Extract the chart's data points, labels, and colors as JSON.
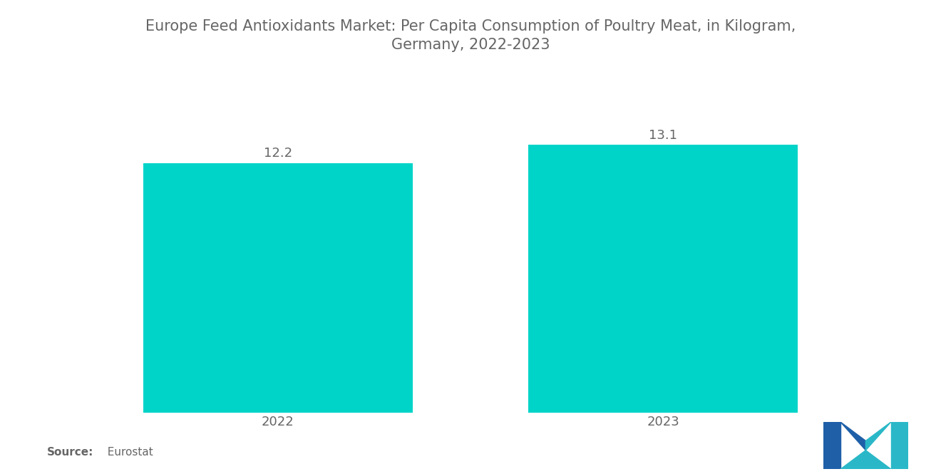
{
  "title_line1": "Europe Feed Antioxidants Market: Per Capita Consumption of Poultry Meat, in Kilogram,",
  "title_line2": "Germany, 2022-2023",
  "categories": [
    "2022",
    "2023"
  ],
  "values": [
    12.2,
    13.1
  ],
  "bar_color": "#00D4C8",
  "background_color": "#ffffff",
  "title_fontsize": 15,
  "label_fontsize": 13,
  "value_fontsize": 13,
  "source_bold": "Source:",
  "source_normal": "  Eurostat",
  "text_color": "#666666",
  "ylim": [
    0,
    16
  ],
  "bar_width": 0.7
}
